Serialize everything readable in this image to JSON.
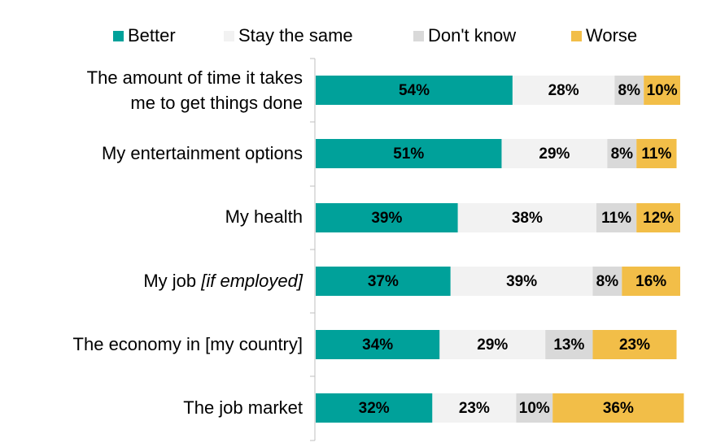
{
  "chart_data": {
    "type": "bar",
    "orientation": "horizontal",
    "stacked": true,
    "legend_position": "top",
    "categories": [
      "The amount of time it takes me to get things done",
      "My entertainment options",
      "My health",
      "My job [if employed]",
      "The economy in [my country]",
      "The job market"
    ],
    "category_lines": [
      [
        {
          "t": "The amount of time it takes"
        }
      ],
      [
        {
          "t": "me to get things done"
        }
      ],
      [
        {
          "t": "My entertainment options"
        }
      ],
      [
        {
          "t": "My health"
        }
      ],
      [
        {
          "t": "My job "
        },
        {
          "t": "[if employed]",
          "italic": true
        }
      ],
      [
        {
          "t": "The economy in [my country]"
        }
      ],
      [
        {
          "t": "The job market"
        }
      ]
    ],
    "series": [
      {
        "name": "Better",
        "color": "#00A19A",
        "values": [
          54,
          51,
          39,
          37,
          34,
          32
        ]
      },
      {
        "name": "Stay the same",
        "color": "#F2F2F2",
        "values": [
          28,
          29,
          38,
          39,
          29,
          23
        ]
      },
      {
        "name": "Don't know",
        "color": "#D9D9D9",
        "values": [
          8,
          8,
          11,
          8,
          13,
          10
        ]
      },
      {
        "name": "Worse",
        "color": "#F2BE48",
        "values": [
          10,
          11,
          12,
          16,
          23,
          36
        ]
      }
    ],
    "value_suffix": "%",
    "xlim": [
      0,
      100
    ],
    "grid": false
  }
}
